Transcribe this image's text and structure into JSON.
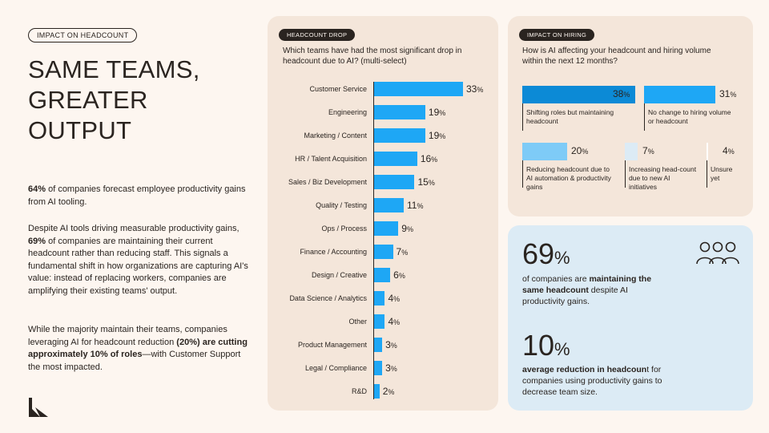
{
  "left": {
    "tag": "IMPACT ON HEADCOUNT",
    "headline": "SAME TEAMS, GREATER OUTPUT",
    "p1_bold": "64%",
    "p1_rest": " of companies forecast employee productivity gains from AI tooling.",
    "p2_a": "Despite AI tools driving measurable productivity gains, ",
    "p2_bold": "69%",
    "p2_b": " of companies are maintaining their current headcount rather than reducing staff. This signals a fundamental shift in how organizations are capturing AI's value: instead of replacing workers, companies are amplifying their existing teams' output.",
    "p3_a": "While the majority maintain their teams, companies leveraging AI for headcount reduction ",
    "p3_bold": "(20%) are cutting approximately 10% of roles",
    "p3_b": "—with Customer Support the most impacted."
  },
  "drop": {
    "pill": "HEADCOUNT DROP",
    "question": "Which teams have had the most significant drop in headcount due to AI? (multi-select)"
  },
  "chart_data": {
    "type": "bar",
    "orientation": "horizontal",
    "title": "Which teams have had the most significant drop in headcount due to AI? (multi-select)",
    "categories": [
      "Customer Service",
      "Engineering",
      "Marketing / Content",
      "HR / Talent Acquisition",
      "Sales / Biz Development",
      "Quality / Testing",
      "Ops / Process",
      "Finance / Accounting",
      "Design / Creative",
      "Data Science / Analytics",
      "Other",
      "Product Management",
      "Legal / Compliance",
      "R&D"
    ],
    "values": [
      33,
      19,
      19,
      16,
      15,
      11,
      9,
      7,
      6,
      4,
      4,
      3,
      3,
      2
    ],
    "unit": "%",
    "xlim": [
      0,
      33
    ],
    "color": "#1ea7f5"
  },
  "hiring": {
    "pill": "IMPACT ON HIRING",
    "question": "How is AI affecting your headcount and hiring volume within the next 12 months?",
    "tiles": [
      {
        "value": "38",
        "pct": "%",
        "label": "Shifting roles but maintaining headcount",
        "color": "#0c8ad6"
      },
      {
        "value": "31",
        "pct": "%",
        "label": "No change to hiring volume or headcount",
        "color": "#1ea7f5"
      },
      {
        "value": "20",
        "pct": "%",
        "label": "Reducing headcount due to AI automation & productivity gains",
        "color": "#7ecbf7"
      },
      {
        "value": "7",
        "pct": "%",
        "label": "Increasing head-count due to new AI initiatives",
        "color": "#dcebf5"
      },
      {
        "value": "4",
        "pct": "%",
        "label": "Unsure yet",
        "color": "#ffffff"
      }
    ]
  },
  "stats": {
    "s1_num": "69",
    "s1_pct": "%",
    "s1_a": "of companies are ",
    "s1_bold": "maintaining the same headcount",
    "s1_b": " despite AI productivity gains.",
    "s2_num": "10",
    "s2_pct": "%",
    "s2_bold": "average reduction in headcoun",
    "s2_b": "t for companies using productivity gains to decrease team size.",
    "icon": "people-icon"
  }
}
